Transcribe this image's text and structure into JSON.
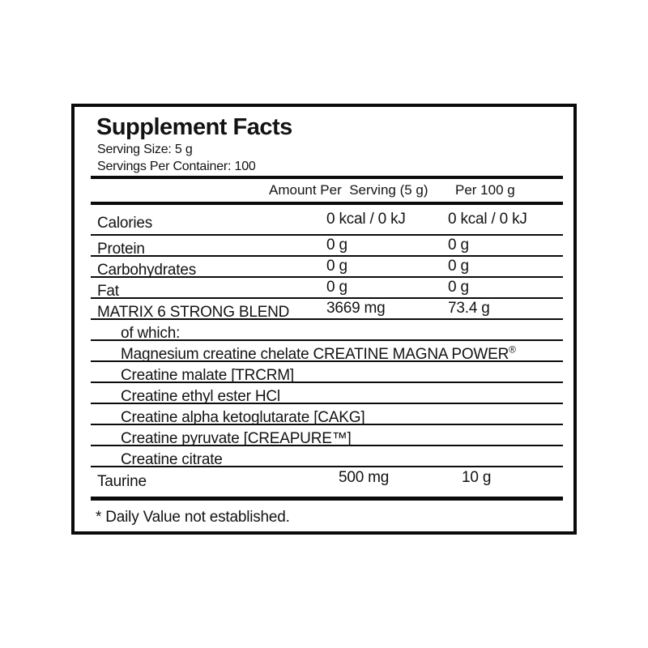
{
  "label": {
    "title": "Supplement Facts",
    "serving_size": "Serving Size: 5 g",
    "servings_per_container": "Servings Per Container: 100",
    "columns": {
      "amount_per_serving": "Amount Per  Serving (5 g)",
      "per_100g": "Per 100 g"
    },
    "rows": [
      {
        "name": "Calories",
        "col1": "0 kcal / 0 kJ",
        "col2": "0 kcal / 0 kJ"
      },
      {
        "name": "Protein",
        "col1": "0 g",
        "col2": "0 g"
      },
      {
        "name": "Carbohydrates",
        "col1": "0 g",
        "col2": "0 g"
      },
      {
        "name": "Fat",
        "col1": "0 g",
        "col2": "0 g"
      },
      {
        "name": "MATRIX 6 STRONG BLEND",
        "col1": "3669 mg",
        "col2": "73.4 g"
      },
      {
        "name": "of which:"
      },
      {
        "name": "Magnesium creatine chelate CREATINE MAGNA POWER",
        "sup": "®"
      },
      {
        "name": "Creatine malate [TRCRM]"
      },
      {
        "name": "Creatine ethyl ester HCl"
      },
      {
        "name": "Creatine alpha ketoglutarate [CAKG]"
      },
      {
        "name": "Creatine pyruvate [CREAPURE™]"
      },
      {
        "name": "Creatine citrate"
      },
      {
        "name": "Taurine",
        "col1": "500 mg",
        "col2": "10 g"
      }
    ],
    "footnote": "* Daily Value not established.",
    "colors": {
      "ink": "#0b0b0b",
      "background": "#ffffff"
    }
  }
}
